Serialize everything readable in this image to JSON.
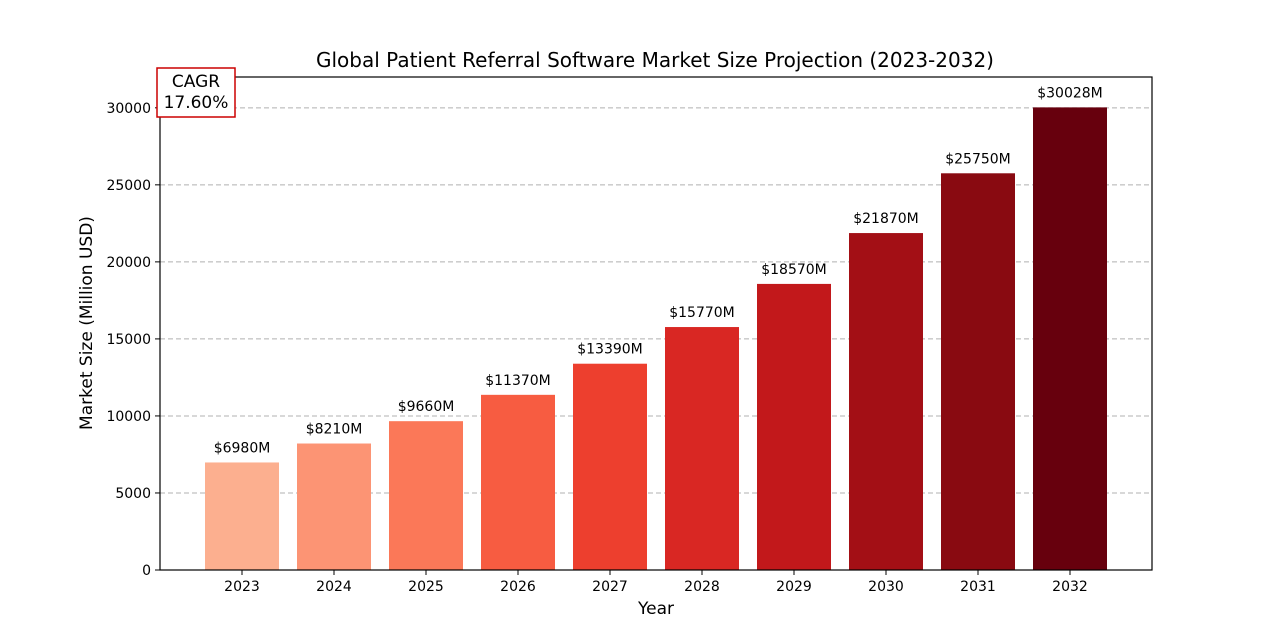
{
  "chart_data": {
    "type": "bar",
    "title": "Global Patient Referral Software Market Size Projection (2023-2032)",
    "xlabel": "Year",
    "ylabel": "Market Size (Million USD)",
    "categories": [
      "2023",
      "2024",
      "2025",
      "2026",
      "2027",
      "2028",
      "2029",
      "2030",
      "2031",
      "2032"
    ],
    "values": [
      6980,
      8210,
      9660,
      11370,
      13390,
      15770,
      18570,
      21870,
      25750,
      30028
    ],
    "data_labels": [
      "$6980M",
      "$8210M",
      "$9660M",
      "$11370M",
      "$13390M",
      "$15770M",
      "$18570M",
      "$21870M",
      "$25750M",
      "$30028M"
    ],
    "ylim": [
      0,
      32000
    ],
    "yticks": [
      0,
      5000,
      10000,
      15000,
      20000,
      25000,
      30000
    ],
    "ytick_labels": [
      "0",
      "5000",
      "10000",
      "15000",
      "20000",
      "25000",
      "30000"
    ],
    "grid": "y-dashed",
    "colors": [
      "#fcaf8f",
      "#fc9474",
      "#fb7858",
      "#f75c41",
      "#ed3f2e",
      "#d92723",
      "#c2181b",
      "#a30f15",
      "#890a11",
      "#67000d"
    ],
    "annotation": {
      "line1": "CAGR",
      "line2": "17.60%",
      "border_color": "#cc0000"
    }
  }
}
